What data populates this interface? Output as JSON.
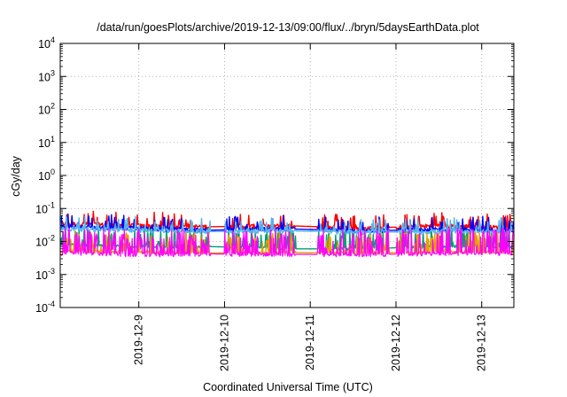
{
  "chart_data": {
    "type": "line",
    "title": "/data/run/goesPlots/archive/2019-12-13/09:00/flux/../bryn/5daysEarthData.plot",
    "xlabel": "Coordinated Universal Time (UTC)",
    "ylabel": "cGy/day",
    "yscale": "log",
    "ylim": [
      0.0001,
      10000
    ],
    "y_ticks": [
      {
        "value": 10000,
        "base": "10",
        "exp": "4"
      },
      {
        "value": 1000,
        "base": "10",
        "exp": "3"
      },
      {
        "value": 100,
        "base": "10",
        "exp": "2"
      },
      {
        "value": 10,
        "base": "10",
        "exp": "1"
      },
      {
        "value": 1,
        "base": "10",
        "exp": "0"
      },
      {
        "value": 0.1,
        "base": "10",
        "exp": "-1"
      },
      {
        "value": 0.01,
        "base": "10",
        "exp": "-2"
      },
      {
        "value": 0.001,
        "base": "10",
        "exp": "-3"
      },
      {
        "value": 0.0001,
        "base": "10",
        "exp": "-4"
      }
    ],
    "xlim": [
      "2019-12-08T02:00",
      "2019-12-13T09:00"
    ],
    "x_ticks": [
      "2019-12-9",
      "2019-12-10",
      "2019-12-11",
      "2019-12-12",
      "2019-12-13"
    ],
    "grid": true,
    "series": [
      {
        "color": "#ff0000",
        "values": [
          0.035,
          0.03,
          0.028,
          0.03,
          0.025,
          0.03,
          0.026
        ]
      },
      {
        "color": "#009e73",
        "values": [
          0.008,
          0.007,
          0.007,
          0.006,
          0.006,
          0.007,
          0.007
        ]
      },
      {
        "color": "#0000ff",
        "values": [
          0.028,
          0.025,
          0.022,
          0.024,
          0.021,
          0.023,
          0.022
        ]
      },
      {
        "color": "#56b4e9",
        "values": [
          0.024,
          0.022,
          0.02,
          0.021,
          0.019,
          0.02,
          0.02
        ]
      },
      {
        "color": "#e69f00",
        "values": [
          0.005,
          0.0048,
          0.0045,
          0.0046,
          0.0045,
          0.0047,
          0.0048
        ]
      },
      {
        "color": "#ff00ff",
        "values": [
          0.0045,
          0.004,
          0.0042,
          0.0041,
          0.004,
          0.0043,
          0.0044
        ]
      }
    ]
  }
}
